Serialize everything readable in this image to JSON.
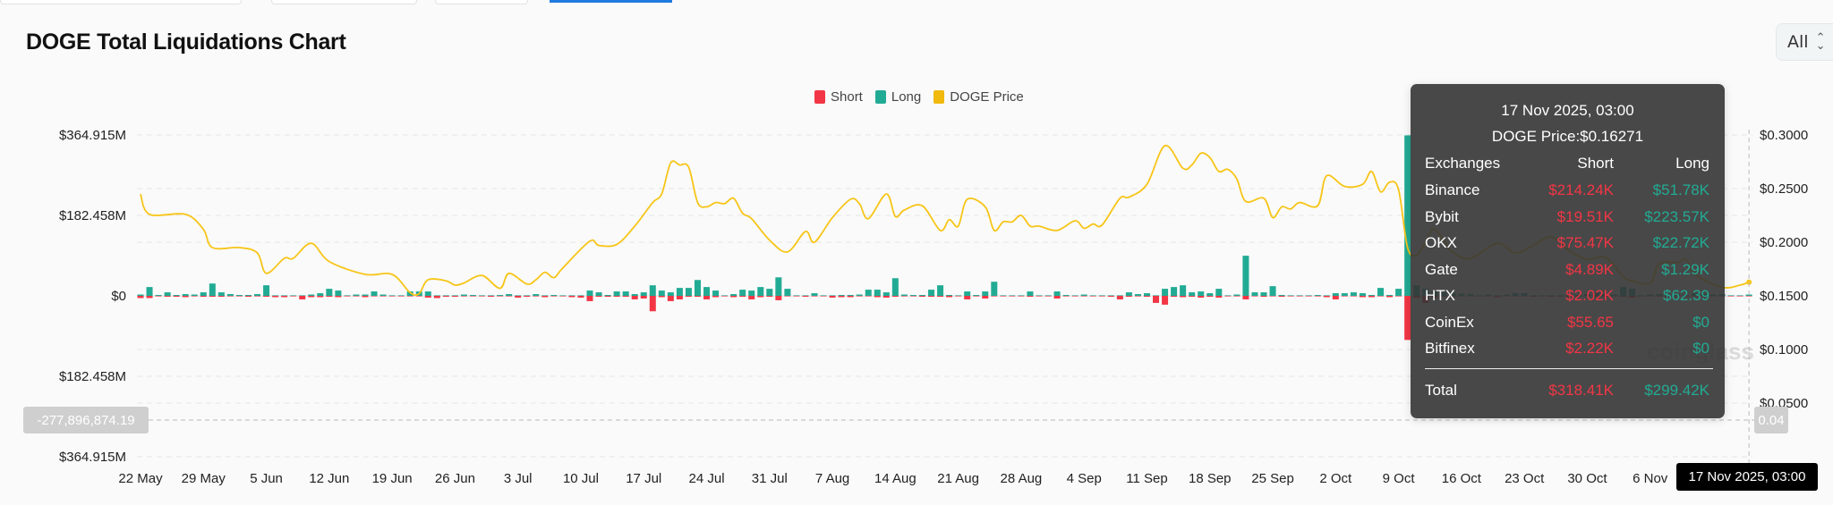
{
  "title": "DOGE Total Liquidations Chart",
  "range_select": {
    "value": "All",
    "icon": "chevron-up-down-icon"
  },
  "watermark": "coinglass",
  "colors": {
    "short": "#f23645",
    "long": "#22ab94",
    "price": "#f7c518",
    "grid": "#e6e6e6"
  },
  "chart_data": {
    "type": "bar",
    "title": "",
    "legend": {
      "placement": "top-center",
      "items": [
        "Short",
        "Long",
        "DOGE Price"
      ]
    },
    "grid": true,
    "left_axis": {
      "ticks": [
        "$364.915M",
        "$182.458M",
        "$0",
        "$182.458M",
        "$364.915M"
      ],
      "range_musd": [
        -364.915,
        364.915
      ]
    },
    "right_axis": {
      "ticks": [
        "$0.3000",
        "$0.2500",
        "$0.2000",
        "$0.1500",
        "$0.1000",
        "$0.0500"
      ],
      "range": [
        0,
        0.3
      ]
    },
    "x_ticks": [
      "22 May",
      "29 May",
      "5 Jun",
      "12 Jun",
      "19 Jun",
      "26 Jun",
      "3 Jul",
      "10 Jul",
      "17 Jul",
      "24 Jul",
      "31 Jul",
      "7 Aug",
      "14 Aug",
      "21 Aug",
      "28 Aug",
      "4 Sep",
      "11 Sep",
      "18 Sep",
      "25 Sep",
      "2 Oct",
      "9 Oct",
      "16 Oct",
      "23 Oct",
      "30 Oct",
      "6 Nov"
    ],
    "categories": [
      "22 May",
      "23 May",
      "24 May",
      "25 May",
      "26 May",
      "27 May",
      "28 May",
      "29 May",
      "30 May",
      "31 May",
      "1 Jun",
      "2 Jun",
      "3 Jun",
      "4 Jun",
      "5 Jun",
      "6 Jun",
      "7 Jun",
      "8 Jun",
      "9 Jun",
      "10 Jun",
      "11 Jun",
      "12 Jun",
      "13 Jun",
      "14 Jun",
      "15 Jun",
      "16 Jun",
      "17 Jun",
      "18 Jun",
      "19 Jun",
      "20 Jun",
      "21 Jun",
      "22 Jun",
      "23 Jun",
      "24 Jun",
      "25 Jun",
      "26 Jun",
      "27 Jun",
      "28 Jun",
      "29 Jun",
      "30 Jun",
      "1 Jul",
      "2 Jul",
      "3 Jul",
      "4 Jul",
      "5 Jul",
      "6 Jul",
      "7 Jul",
      "8 Jul",
      "9 Jul",
      "10 Jul",
      "11 Jul",
      "12 Jul",
      "13 Jul",
      "14 Jul",
      "15 Jul",
      "16 Jul",
      "17 Jul",
      "18 Jul",
      "19 Jul",
      "20 Jul",
      "21 Jul",
      "22 Jul",
      "23 Jul",
      "24 Jul",
      "25 Jul",
      "26 Jul",
      "27 Jul",
      "28 Jul",
      "29 Jul",
      "30 Jul",
      "31 Jul",
      "1 Aug",
      "2 Aug",
      "3 Aug",
      "4 Aug",
      "5 Aug",
      "6 Aug",
      "7 Aug",
      "8 Aug",
      "9 Aug",
      "10 Aug",
      "11 Aug",
      "12 Aug",
      "13 Aug",
      "14 Aug",
      "15 Aug",
      "16 Aug",
      "17 Aug",
      "18 Aug",
      "19 Aug",
      "20 Aug",
      "21 Aug",
      "22 Aug",
      "23 Aug",
      "24 Aug",
      "25 Aug",
      "26 Aug",
      "27 Aug",
      "28 Aug",
      "29 Aug",
      "30 Aug",
      "31 Aug",
      "1 Sep",
      "2 Sep",
      "3 Sep",
      "4 Sep",
      "5 Sep",
      "6 Sep",
      "7 Sep",
      "8 Sep",
      "9 Sep",
      "10 Sep",
      "11 Sep",
      "12 Sep",
      "13 Sep",
      "14 Sep",
      "15 Sep",
      "16 Sep",
      "17 Sep",
      "18 Sep",
      "19 Sep",
      "20 Sep",
      "21 Sep",
      "22 Sep",
      "23 Sep",
      "24 Sep",
      "25 Sep",
      "26 Sep",
      "27 Sep",
      "28 Sep",
      "29 Sep",
      "30 Sep",
      "1 Oct",
      "2 Oct",
      "3 Oct",
      "4 Oct",
      "5 Oct",
      "6 Oct",
      "7 Oct",
      "8 Oct",
      "9 Oct",
      "10 Oct",
      "11 Oct",
      "12 Oct",
      "13 Oct",
      "14 Oct",
      "15 Oct",
      "16 Oct",
      "17 Oct",
      "18 Oct",
      "19 Oct",
      "20 Oct",
      "21 Oct",
      "22 Oct",
      "23 Oct",
      "24 Oct",
      "25 Oct",
      "26 Oct",
      "27 Oct",
      "28 Oct",
      "29 Oct",
      "30 Oct",
      "31 Oct",
      "1 Nov",
      "2 Nov",
      "3 Nov",
      "4 Nov",
      "5 Nov",
      "6 Nov",
      "7 Nov",
      "8 Nov",
      "9 Nov",
      "10 Nov",
      "11 Nov",
      "12 Nov",
      "13 Nov",
      "14 Nov",
      "15 Nov",
      "16 Nov",
      "17 Nov"
    ],
    "series": [
      {
        "name": "Long",
        "unit": "M USD",
        "values": [
          3,
          20,
          2,
          8,
          2,
          4,
          3,
          8,
          28,
          8,
          4,
          2,
          2,
          4,
          24,
          1,
          1,
          0.5,
          0.5,
          3,
          6,
          16,
          12,
          1,
          3,
          3,
          10,
          3,
          1,
          1,
          10,
          10,
          10,
          1,
          1,
          1,
          3,
          2,
          0.5,
          0.5,
          2,
          4,
          1,
          1,
          4,
          1,
          2,
          0.5,
          0,
          0,
          12,
          8,
          2,
          10,
          10,
          4,
          8,
          24,
          12,
          8,
          18,
          18,
          36,
          20,
          12,
          1,
          4,
          14,
          12,
          20,
          16,
          42,
          16,
          1,
          1,
          6,
          0.5,
          0.5,
          2,
          2,
          3,
          14,
          14,
          8,
          40,
          3,
          2,
          2,
          14,
          24,
          2,
          1,
          10,
          2,
          10,
          32,
          1,
          1,
          1,
          10,
          0.5,
          0.5,
          10,
          2,
          0.5,
          3,
          1,
          0.5,
          0.5,
          0.5,
          8,
          4,
          6,
          0.5,
          16,
          20,
          24,
          8,
          10,
          6,
          16,
          0.5,
          3,
          91,
          8,
          8,
          22,
          2,
          0.5,
          0.5,
          1,
          2,
          0.5,
          6,
          6,
          8,
          6,
          2,
          18,
          2,
          16,
          364,
          24,
          16,
          10,
          8,
          6,
          5,
          4,
          1,
          3,
          1,
          3,
          6,
          6,
          1,
          1,
          1,
          1,
          1,
          2,
          4,
          8,
          3,
          3,
          20,
          16,
          1,
          3,
          4,
          1,
          3,
          1,
          6,
          4,
          3,
          4,
          1,
          0.5,
          3
        ]
      },
      {
        "name": "Short",
        "unit": "M USD",
        "values": [
          5,
          5,
          1,
          2,
          2,
          3,
          1,
          2,
          2,
          2,
          1,
          1,
          2,
          1,
          2,
          3,
          3,
          1,
          8,
          3,
          3,
          2,
          3,
          1,
          1,
          3,
          1,
          1,
          0.5,
          0.5,
          1,
          1,
          4,
          5,
          2,
          2,
          1,
          1,
          1,
          2,
          1,
          1,
          4,
          2,
          1,
          3,
          0.5,
          0.5,
          3,
          4,
          12,
          2,
          2,
          2,
          2,
          8,
          6,
          35,
          3,
          12,
          8,
          2,
          2,
          8,
          3,
          1,
          3,
          2,
          8,
          3,
          2,
          10,
          1,
          1,
          2,
          1,
          1,
          4,
          3,
          3,
          1,
          1,
          3,
          4,
          2,
          1,
          1,
          2,
          2,
          2,
          3,
          1,
          8,
          1,
          6,
          1,
          1,
          1,
          1,
          2,
          0.5,
          0.5,
          6,
          1,
          1,
          0.5,
          0.5,
          0.5,
          2,
          8,
          2,
          1,
          2,
          16,
          20,
          2,
          3,
          2,
          4,
          2,
          4,
          0.5,
          0.5,
          8,
          1,
          2,
          1,
          2,
          0.5,
          1,
          1,
          0.5,
          3,
          8,
          1,
          1,
          3,
          3,
          1,
          3,
          1,
          100,
          4,
          16,
          4,
          2,
          2,
          1,
          1,
          1,
          1,
          3,
          1,
          1,
          1,
          2,
          1,
          2,
          1,
          3,
          1,
          1,
          2,
          2,
          1,
          2,
          4,
          1,
          1,
          1,
          3,
          1,
          1,
          1,
          1,
          1,
          1,
          1,
          0.5,
          0.5
        ]
      },
      {
        "name": "DOGE Price",
        "unit": "USD",
        "points": [
          [
            "22 May",
            0.245
          ],
          [
            "23 May",
            0.226
          ],
          [
            "27 May",
            0.226
          ],
          [
            "29 May",
            0.212
          ],
          [
            "30 May",
            0.195
          ],
          [
            "2 Jun",
            0.195
          ],
          [
            "4 Jun",
            0.19
          ],
          [
            "5 Jun",
            0.171
          ],
          [
            "7 Jun",
            0.185
          ],
          [
            "8 Jun",
            0.185
          ],
          [
            "10 Jun",
            0.199
          ],
          [
            "12 Jun",
            0.182
          ],
          [
            "16 Jun",
            0.17
          ],
          [
            "19 Jun",
            0.17
          ],
          [
            "21 Jun",
            0.153
          ],
          [
            "22 Jun",
            0.152
          ],
          [
            "23 Jun",
            0.165
          ],
          [
            "25 Jun",
            0.164
          ],
          [
            "26 Jun",
            0.16
          ],
          [
            "27 Jun",
            0.162
          ],
          [
            "29 Jun",
            0.169
          ],
          [
            "1 Jul",
            0.157
          ],
          [
            "2 Jul",
            0.171
          ],
          [
            "4 Jul",
            0.161
          ],
          [
            "5 Jul",
            0.165
          ],
          [
            "6 Jul",
            0.172
          ],
          [
            "7 Jul",
            0.167
          ],
          [
            "8 Jul",
            0.176
          ],
          [
            "11 Jul",
            0.201
          ],
          [
            "12 Jul",
            0.197
          ],
          [
            "14 Jul",
            0.198
          ],
          [
            "16 Jul",
            0.215
          ],
          [
            "18 Jul",
            0.237
          ],
          [
            "19 Jul",
            0.245
          ],
          [
            "20 Jul",
            0.274
          ],
          [
            "21 Jul",
            0.272
          ],
          [
            "22 Jul",
            0.27
          ],
          [
            "23 Jul",
            0.237
          ],
          [
            "24 Jul",
            0.233
          ],
          [
            "25 Jul",
            0.237
          ],
          [
            "26 Jul",
            0.236
          ],
          [
            "27 Jul",
            0.241
          ],
          [
            "28 Jul",
            0.227
          ],
          [
            "29 Jul",
            0.222
          ],
          [
            "31 Jul",
            0.202
          ],
          [
            "2 Aug",
            0.191
          ],
          [
            "4 Aug",
            0.21
          ],
          [
            "5 Aug",
            0.2
          ],
          [
            "7 Aug",
            0.223
          ],
          [
            "9 Aug",
            0.24
          ],
          [
            "10 Aug",
            0.236
          ],
          [
            "11 Aug",
            0.222
          ],
          [
            "13 Aug",
            0.245
          ],
          [
            "14 Aug",
            0.224
          ],
          [
            "15 Aug",
            0.23
          ],
          [
            "17 Aug",
            0.234
          ],
          [
            "19 Aug",
            0.211
          ],
          [
            "20 Aug",
            0.221
          ],
          [
            "21 Aug",
            0.215
          ],
          [
            "22 Aug",
            0.24
          ],
          [
            "24 Aug",
            0.233
          ],
          [
            "25 Aug",
            0.211
          ],
          [
            "26 Aug",
            0.219
          ],
          [
            "27 Aug",
            0.219
          ],
          [
            "28 Aug",
            0.225
          ],
          [
            "29 Aug",
            0.215
          ],
          [
            "30 Aug",
            0.215
          ],
          [
            "1 Sep",
            0.211
          ],
          [
            "3 Sep",
            0.22
          ],
          [
            "4 Sep",
            0.213
          ],
          [
            "5 Sep",
            0.217
          ],
          [
            "6 Sep",
            0.216
          ],
          [
            "8 Sep",
            0.241
          ],
          [
            "9 Sep",
            0.242
          ],
          [
            "11 Sep",
            0.254
          ],
          [
            "13 Sep",
            0.29
          ],
          [
            "15 Sep",
            0.269
          ],
          [
            "16 Sep",
            0.272
          ],
          [
            "17 Sep",
            0.283
          ],
          [
            "18 Sep",
            0.279
          ],
          [
            "19 Sep",
            0.266
          ],
          [
            "20 Sep",
            0.268
          ],
          [
            "21 Sep",
            0.259
          ],
          [
            "22 Sep",
            0.238
          ],
          [
            "24 Sep",
            0.241
          ],
          [
            "25 Sep",
            0.223
          ],
          [
            "26 Sep",
            0.233
          ],
          [
            "27 Sep",
            0.231
          ],
          [
            "28 Sep",
            0.237
          ],
          [
            "30 Sep",
            0.234
          ],
          [
            "1 Oct",
            0.262
          ],
          [
            "3 Oct",
            0.252
          ],
          [
            "5 Oct",
            0.254
          ],
          [
            "6 Oct",
            0.266
          ],
          [
            "7 Oct",
            0.247
          ],
          [
            "8 Oct",
            0.256
          ],
          [
            "9 Oct",
            0.249
          ],
          [
            "10 Oct",
            0.195
          ],
          [
            "11 Oct",
            0.188
          ],
          [
            "12 Oct",
            0.2
          ],
          [
            "13 Oct",
            0.212
          ],
          [
            "15 Oct",
            0.191
          ],
          [
            "17 Oct",
            0.185
          ],
          [
            "20 Oct",
            0.199
          ],
          [
            "22 Oct",
            0.19
          ],
          [
            "24 Oct",
            0.197
          ],
          [
            "26 Oct",
            0.205
          ],
          [
            "28 Oct",
            0.192
          ],
          [
            "30 Oct",
            0.184
          ],
          [
            "1 Nov",
            0.186
          ],
          [
            "3 Nov",
            0.168
          ],
          [
            "4 Nov",
            0.164
          ],
          [
            "6 Nov",
            0.162
          ],
          [
            "7 Nov",
            0.18
          ],
          [
            "9 Nov",
            0.181
          ],
          [
            "10 Nov",
            0.184
          ],
          [
            "11 Nov",
            0.17
          ],
          [
            "14 Nov",
            0.158
          ],
          [
            "16 Nov",
            0.16
          ],
          [
            "17 Nov",
            0.16271
          ]
        ]
      }
    ],
    "crosshair": {
      "x_label": "17 Nov 2025, 03:00",
      "y_left_label": "-277,896,874.19",
      "y_right_label": "0.04"
    }
  },
  "tooltip": {
    "date": "17 Nov 2025, 03:00",
    "price": "DOGE Price:$0.16271",
    "headers": {
      "exchange": "Exchanges",
      "short": "Short",
      "long": "Long"
    },
    "rows": [
      {
        "exchange": "Binance",
        "short": "$214.24K",
        "long": "$51.78K"
      },
      {
        "exchange": "Bybit",
        "short": "$19.51K",
        "long": "$223.57K"
      },
      {
        "exchange": "OKX",
        "short": "$75.47K",
        "long": "$22.72K"
      },
      {
        "exchange": "Gate",
        "short": "$4.89K",
        "long": "$1.29K"
      },
      {
        "exchange": "HTX",
        "short": "$2.02K",
        "long": "$62.39"
      },
      {
        "exchange": "CoinEx",
        "short": "$55.65",
        "long": "$0"
      },
      {
        "exchange": "Bitfinex",
        "short": "$2.22K",
        "long": "$0"
      }
    ],
    "total": {
      "exchange": "Total",
      "short": "$318.41K",
      "long": "$299.42K"
    }
  }
}
